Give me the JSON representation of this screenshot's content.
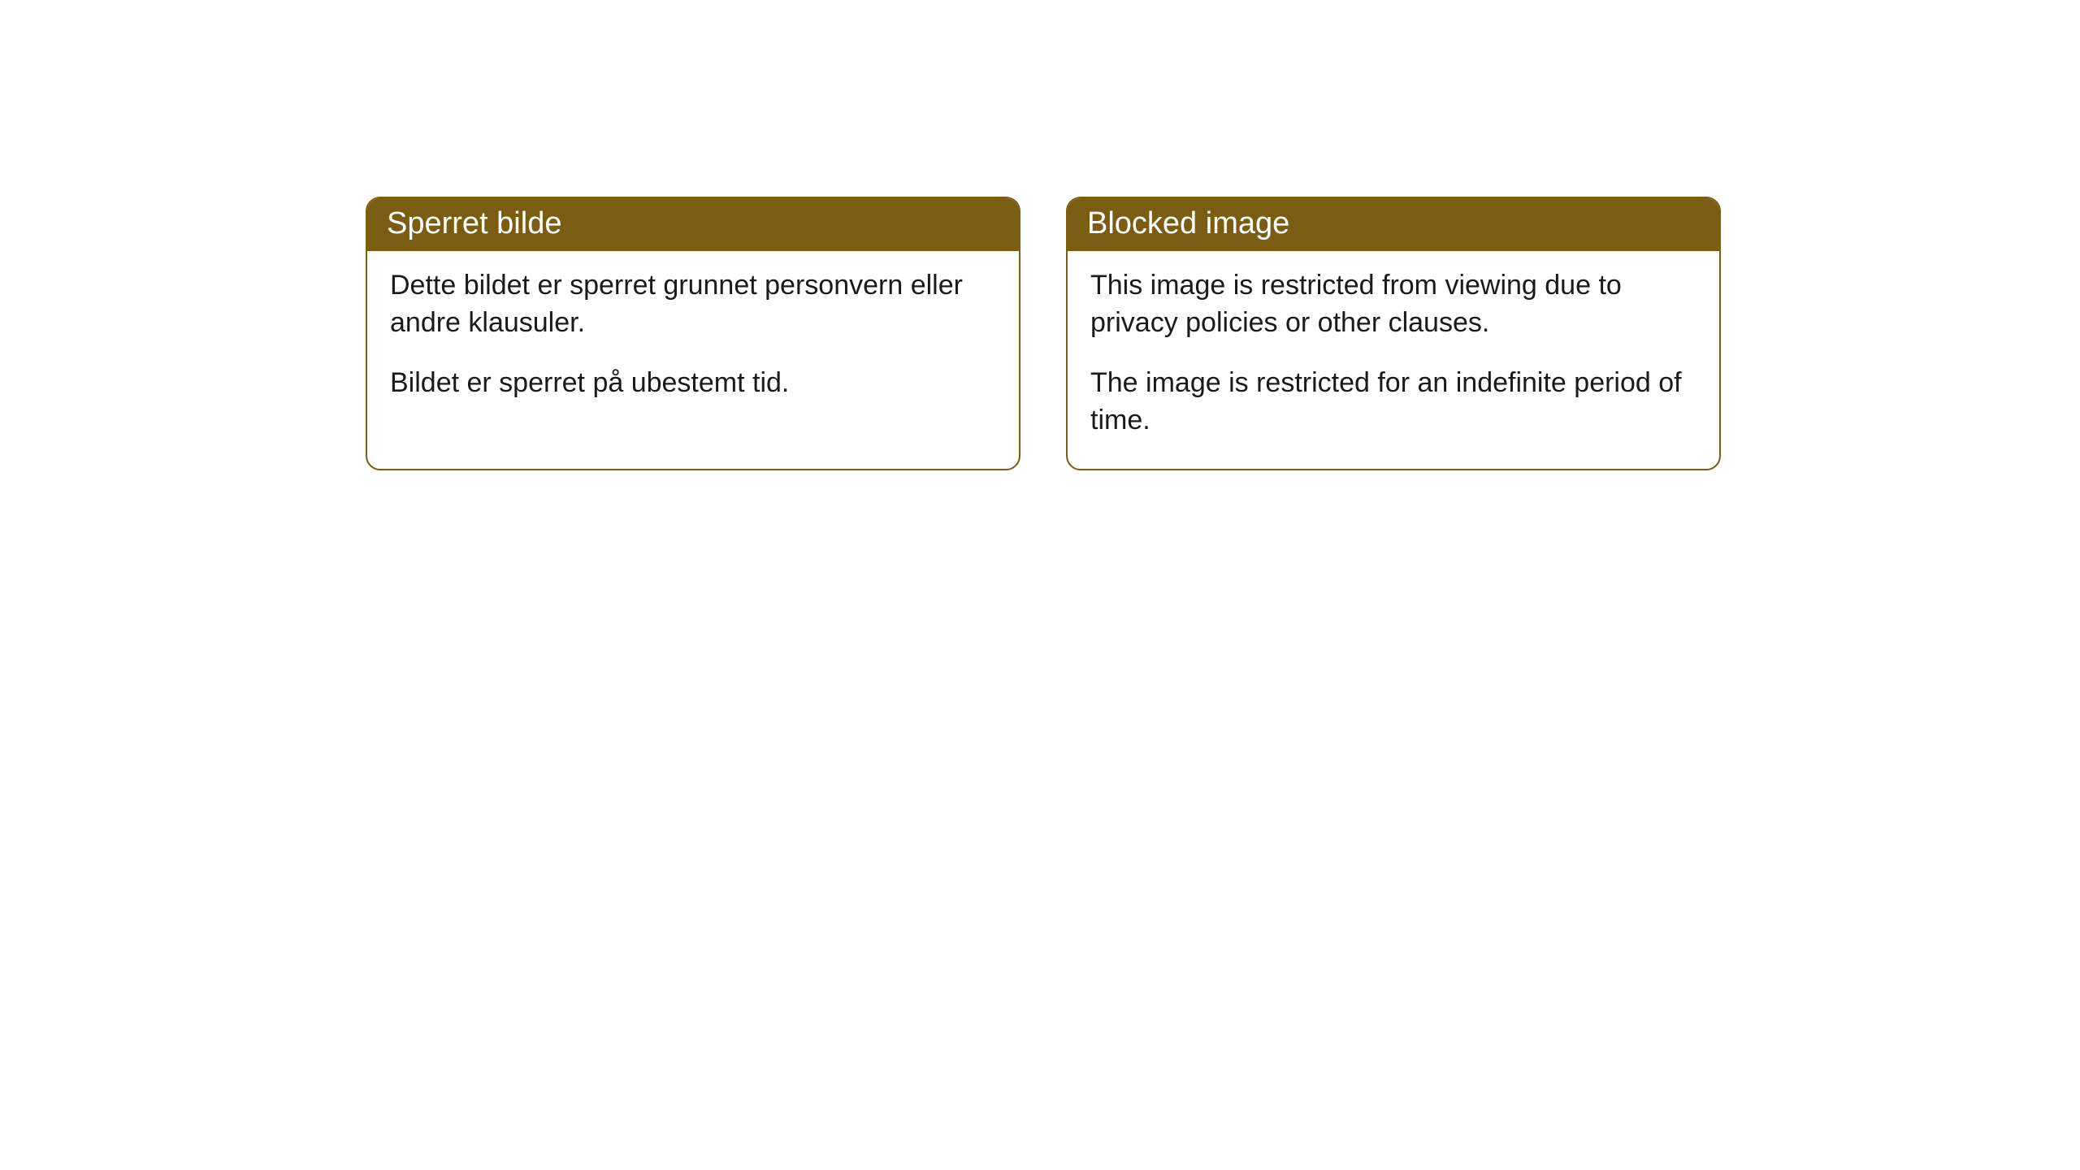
{
  "cards": [
    {
      "title": "Sperret bilde",
      "paragraph1": "Dette bildet er sperret grunnet personvern eller andre klausuler.",
      "paragraph2": "Bildet er sperret på ubestemt tid."
    },
    {
      "title": "Blocked image",
      "paragraph1": "This image is restricted from viewing due to privacy policies or other clauses.",
      "paragraph2": "The image is restricted for an indefinite period of time."
    }
  ],
  "styling": {
    "header_background": "#7a5d13",
    "header_text_color": "#ffffff",
    "border_color": "#7a5d13",
    "body_text_color": "#1a1a1a",
    "card_background": "#ffffff",
    "border_radius": 18,
    "title_fontsize": 38,
    "body_fontsize": 34
  }
}
